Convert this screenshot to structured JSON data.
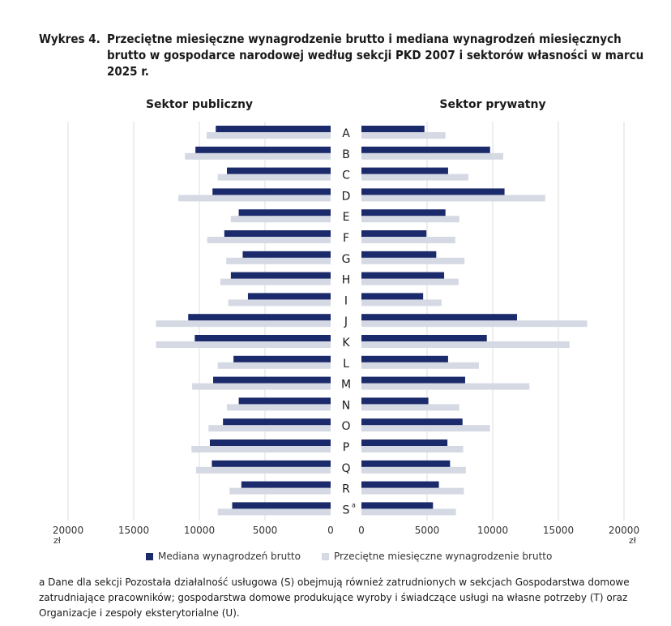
{
  "title_prefix": "Wykres 4.",
  "title_text": "Przeciętne miesięczne wynagrodzenie brutto i mediana wynagrodzeń miesięcznych brutto w gospodarce narodowej według sekcji PKD 2007 i sektorów własności w marcu 2025 r.",
  "footnote": "a Dane dla sekcji Pozostała działalność usługowa (S) obejmują również zatrudnionych w sekcjach Gospodarstwa domowe zatrudniające pracowników; gospodarstwa domowe produkujące wyroby i świadczące usługi na własne potrzeby (T) oraz Organizacje i zespoły eksterytorialne (U).",
  "colors": {
    "median": "#1b2a6b",
    "average": "#d5d9e3",
    "grid": "#dcdcdc"
  },
  "chart_data": {
    "type": "bar",
    "orientation": "horizontal-butterfly",
    "categories": [
      "A",
      "B",
      "C",
      "D",
      "E",
      "F",
      "G",
      "H",
      "I",
      "J",
      "K",
      "L",
      "M",
      "N",
      "O",
      "P",
      "Q",
      "R",
      "S"
    ],
    "category_superscripts": {
      "S": "a"
    },
    "x_unit": "zł",
    "ticks": [
      0,
      5000,
      10000,
      15000,
      20000
    ],
    "xlim": [
      0,
      20000
    ],
    "grid": true,
    "legend_position": "bottom",
    "panels": [
      {
        "title": "Sektor publiczny",
        "side": "left",
        "series": [
          {
            "name": "Mediana wynagrodzeń brutto",
            "values": [
              8750,
              10300,
              7900,
              9000,
              7000,
              8100,
              6700,
              7600,
              6300,
              10850,
              10350,
              7400,
              8950,
              7000,
              8200,
              9200,
              9050,
              6800,
              7500
            ]
          },
          {
            "name": "Przeciętne miesięczne wynagrodzenie brutto",
            "values": [
              9450,
              11100,
              8600,
              11600,
              7600,
              9400,
              7950,
              8400,
              7800,
              13300,
              13300,
              8600,
              10550,
              7900,
              9300,
              10600,
              10250,
              7700,
              8600
            ]
          }
        ]
      },
      {
        "title": "Sektor prywatny",
        "side": "right",
        "series": [
          {
            "name": "Mediana wynagrodzeń brutto",
            "values": [
              4800,
              9800,
              6600,
              10900,
              6400,
              4950,
              5700,
              6300,
              4700,
              11850,
              9550,
              6600,
              7900,
              5100,
              7700,
              6550,
              6750,
              5900,
              5450
            ]
          },
          {
            "name": "Przeciętne miesięczne wynagrodzenie brutto",
            "values": [
              6400,
              10800,
              8150,
              14000,
              7450,
              7150,
              7850,
              7400,
              6100,
              17200,
              15850,
              8950,
              12800,
              7450,
              9800,
              7750,
              7950,
              7800,
              7200
            ]
          }
        ]
      }
    ]
  }
}
